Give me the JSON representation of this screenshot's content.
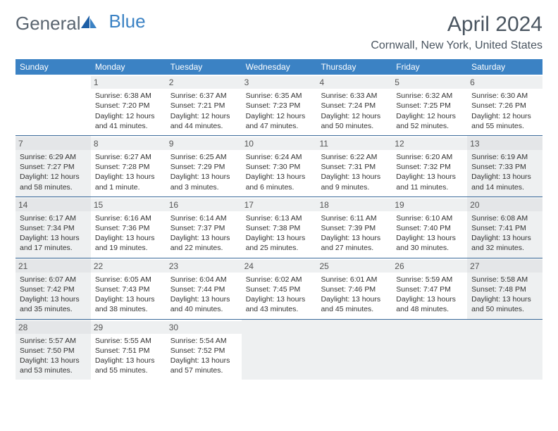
{
  "brand": {
    "part1": "General",
    "part2": "Blue"
  },
  "title": "April 2024",
  "location": "Cornwall, New York, United States",
  "colors": {
    "header_bg": "#3b82c4",
    "header_text": "#ffffff",
    "shade_bg": "#eef0f1",
    "rule": "#3b6a9a",
    "text": "#333333",
    "title_text": "#4a5560"
  },
  "day_headers": [
    "Sunday",
    "Monday",
    "Tuesday",
    "Wednesday",
    "Thursday",
    "Friday",
    "Saturday"
  ],
  "weeks": [
    [
      {
        "day": "",
        "sunrise": "",
        "sunset": "",
        "daylight": "",
        "shade": false
      },
      {
        "day": "1",
        "sunrise": "Sunrise: 6:38 AM",
        "sunset": "Sunset: 7:20 PM",
        "daylight": "Daylight: 12 hours and 41 minutes.",
        "shade": false
      },
      {
        "day": "2",
        "sunrise": "Sunrise: 6:37 AM",
        "sunset": "Sunset: 7:21 PM",
        "daylight": "Daylight: 12 hours and 44 minutes.",
        "shade": false
      },
      {
        "day": "3",
        "sunrise": "Sunrise: 6:35 AM",
        "sunset": "Sunset: 7:23 PM",
        "daylight": "Daylight: 12 hours and 47 minutes.",
        "shade": false
      },
      {
        "day": "4",
        "sunrise": "Sunrise: 6:33 AM",
        "sunset": "Sunset: 7:24 PM",
        "daylight": "Daylight: 12 hours and 50 minutes.",
        "shade": false
      },
      {
        "day": "5",
        "sunrise": "Sunrise: 6:32 AM",
        "sunset": "Sunset: 7:25 PM",
        "daylight": "Daylight: 12 hours and 52 minutes.",
        "shade": false
      },
      {
        "day": "6",
        "sunrise": "Sunrise: 6:30 AM",
        "sunset": "Sunset: 7:26 PM",
        "daylight": "Daylight: 12 hours and 55 minutes.",
        "shade": false
      }
    ],
    [
      {
        "day": "7",
        "sunrise": "Sunrise: 6:29 AM",
        "sunset": "Sunset: 7:27 PM",
        "daylight": "Daylight: 12 hours and 58 minutes.",
        "shade": true
      },
      {
        "day": "8",
        "sunrise": "Sunrise: 6:27 AM",
        "sunset": "Sunset: 7:28 PM",
        "daylight": "Daylight: 13 hours and 1 minute.",
        "shade": false
      },
      {
        "day": "9",
        "sunrise": "Sunrise: 6:25 AM",
        "sunset": "Sunset: 7:29 PM",
        "daylight": "Daylight: 13 hours and 3 minutes.",
        "shade": false
      },
      {
        "day": "10",
        "sunrise": "Sunrise: 6:24 AM",
        "sunset": "Sunset: 7:30 PM",
        "daylight": "Daylight: 13 hours and 6 minutes.",
        "shade": false
      },
      {
        "day": "11",
        "sunrise": "Sunrise: 6:22 AM",
        "sunset": "Sunset: 7:31 PM",
        "daylight": "Daylight: 13 hours and 9 minutes.",
        "shade": false
      },
      {
        "day": "12",
        "sunrise": "Sunrise: 6:20 AM",
        "sunset": "Sunset: 7:32 PM",
        "daylight": "Daylight: 13 hours and 11 minutes.",
        "shade": false
      },
      {
        "day": "13",
        "sunrise": "Sunrise: 6:19 AM",
        "sunset": "Sunset: 7:33 PM",
        "daylight": "Daylight: 13 hours and 14 minutes.",
        "shade": true
      }
    ],
    [
      {
        "day": "14",
        "sunrise": "Sunrise: 6:17 AM",
        "sunset": "Sunset: 7:34 PM",
        "daylight": "Daylight: 13 hours and 17 minutes.",
        "shade": true
      },
      {
        "day": "15",
        "sunrise": "Sunrise: 6:16 AM",
        "sunset": "Sunset: 7:36 PM",
        "daylight": "Daylight: 13 hours and 19 minutes.",
        "shade": false
      },
      {
        "day": "16",
        "sunrise": "Sunrise: 6:14 AM",
        "sunset": "Sunset: 7:37 PM",
        "daylight": "Daylight: 13 hours and 22 minutes.",
        "shade": false
      },
      {
        "day": "17",
        "sunrise": "Sunrise: 6:13 AM",
        "sunset": "Sunset: 7:38 PM",
        "daylight": "Daylight: 13 hours and 25 minutes.",
        "shade": false
      },
      {
        "day": "18",
        "sunrise": "Sunrise: 6:11 AM",
        "sunset": "Sunset: 7:39 PM",
        "daylight": "Daylight: 13 hours and 27 minutes.",
        "shade": false
      },
      {
        "day": "19",
        "sunrise": "Sunrise: 6:10 AM",
        "sunset": "Sunset: 7:40 PM",
        "daylight": "Daylight: 13 hours and 30 minutes.",
        "shade": false
      },
      {
        "day": "20",
        "sunrise": "Sunrise: 6:08 AM",
        "sunset": "Sunset: 7:41 PM",
        "daylight": "Daylight: 13 hours and 32 minutes.",
        "shade": true
      }
    ],
    [
      {
        "day": "21",
        "sunrise": "Sunrise: 6:07 AM",
        "sunset": "Sunset: 7:42 PM",
        "daylight": "Daylight: 13 hours and 35 minutes.",
        "shade": true
      },
      {
        "day": "22",
        "sunrise": "Sunrise: 6:05 AM",
        "sunset": "Sunset: 7:43 PM",
        "daylight": "Daylight: 13 hours and 38 minutes.",
        "shade": false
      },
      {
        "day": "23",
        "sunrise": "Sunrise: 6:04 AM",
        "sunset": "Sunset: 7:44 PM",
        "daylight": "Daylight: 13 hours and 40 minutes.",
        "shade": false
      },
      {
        "day": "24",
        "sunrise": "Sunrise: 6:02 AM",
        "sunset": "Sunset: 7:45 PM",
        "daylight": "Daylight: 13 hours and 43 minutes.",
        "shade": false
      },
      {
        "day": "25",
        "sunrise": "Sunrise: 6:01 AM",
        "sunset": "Sunset: 7:46 PM",
        "daylight": "Daylight: 13 hours and 45 minutes.",
        "shade": false
      },
      {
        "day": "26",
        "sunrise": "Sunrise: 5:59 AM",
        "sunset": "Sunset: 7:47 PM",
        "daylight": "Daylight: 13 hours and 48 minutes.",
        "shade": false
      },
      {
        "day": "27",
        "sunrise": "Sunrise: 5:58 AM",
        "sunset": "Sunset: 7:48 PM",
        "daylight": "Daylight: 13 hours and 50 minutes.",
        "shade": true
      }
    ],
    [
      {
        "day": "28",
        "sunrise": "Sunrise: 5:57 AM",
        "sunset": "Sunset: 7:50 PM",
        "daylight": "Daylight: 13 hours and 53 minutes.",
        "shade": true
      },
      {
        "day": "29",
        "sunrise": "Sunrise: 5:55 AM",
        "sunset": "Sunset: 7:51 PM",
        "daylight": "Daylight: 13 hours and 55 minutes.",
        "shade": false
      },
      {
        "day": "30",
        "sunrise": "Sunrise: 5:54 AM",
        "sunset": "Sunset: 7:52 PM",
        "daylight": "Daylight: 13 hours and 57 minutes.",
        "shade": false
      },
      {
        "day": "",
        "sunrise": "",
        "sunset": "",
        "daylight": "",
        "shade": true
      },
      {
        "day": "",
        "sunrise": "",
        "sunset": "",
        "daylight": "",
        "shade": true
      },
      {
        "day": "",
        "sunrise": "",
        "sunset": "",
        "daylight": "",
        "shade": true
      },
      {
        "day": "",
        "sunrise": "",
        "sunset": "",
        "daylight": "",
        "shade": true
      }
    ]
  ]
}
